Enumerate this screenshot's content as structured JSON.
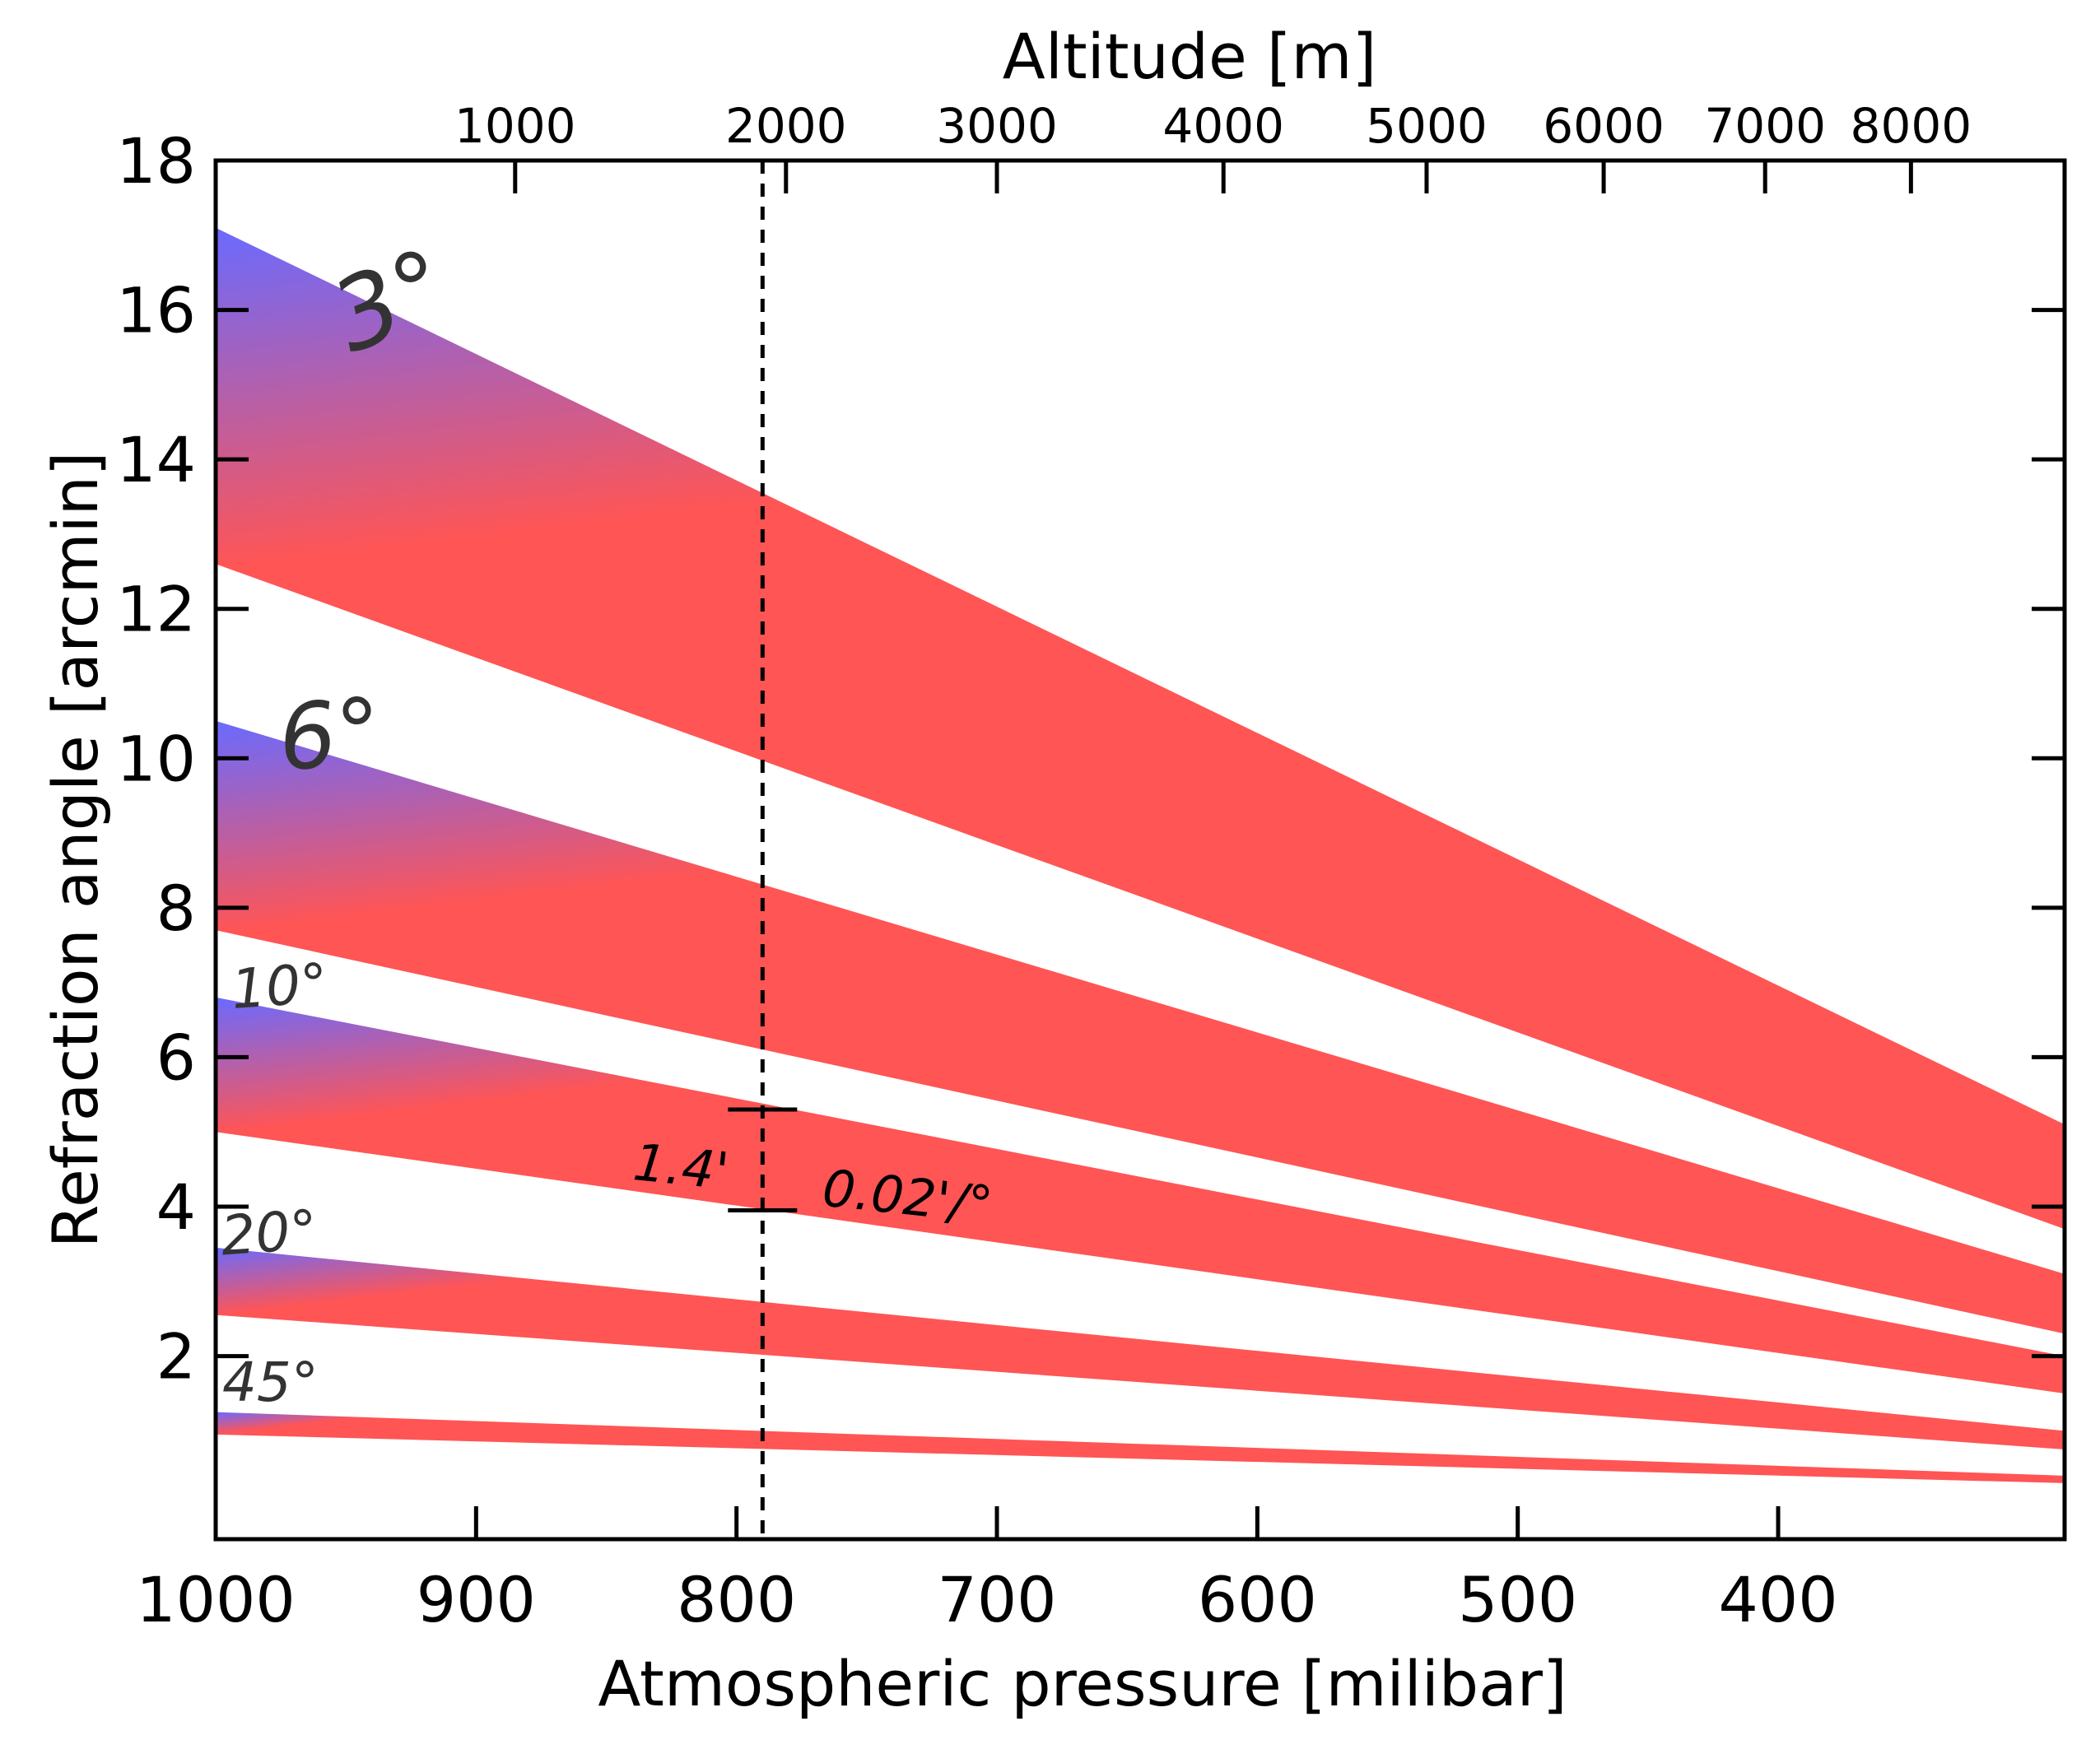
{
  "chart_data": {
    "type": "area",
    "xlabel": "Atmospheric pressure [milibar]",
    "ylabel": "Refraction angle [arcmin]",
    "top_xlabel": "Altitude [m]",
    "xlim": [
      1000,
      290
    ],
    "ylim": [
      -0.45,
      18
    ],
    "x_ticks": [
      1000,
      900,
      800,
      700,
      600,
      500,
      400
    ],
    "y_ticks": [
      2,
      4,
      6,
      8,
      10,
      12,
      14,
      16,
      18
    ],
    "top_ticks": [
      {
        "label": "1000",
        "pressure": 885
      },
      {
        "label": "2000",
        "pressure": 781
      },
      {
        "label": "3000",
        "pressure": 700
      },
      {
        "label": "4000",
        "pressure": 613
      },
      {
        "label": "5000",
        "pressure": 535
      },
      {
        "label": "6000",
        "pressure": 467
      },
      {
        "label": "7000",
        "pressure": 405
      },
      {
        "label": "8000",
        "pressure": 349
      }
    ],
    "colors": {
      "upper_edge": "#6a6aff",
      "lower_edge": "#ff5555"
    },
    "series": [
      {
        "name": "3°",
        "pressure": [
          1000,
          290
        ],
        "upper": [
          17.1,
          5.1
        ],
        "lower": [
          12.6,
          3.7
        ]
      },
      {
        "name": "6°",
        "pressure": [
          1000,
          290
        ],
        "upper": [
          10.5,
          3.1
        ],
        "lower": [
          7.7,
          2.3
        ]
      },
      {
        "name": "10°",
        "pressure": [
          1000,
          290
        ],
        "upper": [
          6.8,
          2.0
        ],
        "lower": [
          5.0,
          1.5
        ]
      },
      {
        "name": "20°",
        "pressure": [
          1000,
          290
        ],
        "upper": [
          3.45,
          1.0
        ],
        "lower": [
          2.55,
          0.75
        ]
      },
      {
        "name": "45°",
        "pressure": [
          1000,
          290
        ],
        "upper": [
          1.25,
          0.4
        ],
        "lower": [
          0.95,
          0.3
        ]
      }
    ],
    "band_labels": [
      {
        "text": "3°",
        "pressure": 928,
        "y": 15.7,
        "size": 120,
        "rotate": -22
      },
      {
        "text": "6°",
        "pressure": 955,
        "y": 9.9,
        "size": 110,
        "rotate": -5
      },
      {
        "text": "10°",
        "pressure": 975,
        "y": 6.7,
        "size": 66,
        "rotate": -4
      },
      {
        "text": "20°",
        "pressure": 979,
        "y": 3.4,
        "size": 66,
        "rotate": -4
      },
      {
        "text": "45°",
        "pressure": 979,
        "y": 1.4,
        "size": 66,
        "rotate": 0
      }
    ],
    "reference_line": {
      "pressure": 790,
      "style": "dashed"
    },
    "annotations": [
      {
        "text": "1.4'",
        "pressure": 822,
        "y": 4.3,
        "rotate": 6
      },
      {
        "text": "0.02'/°",
        "pressure": 735,
        "y": 3.9,
        "rotate": 6
      }
    ],
    "error_bar": {
      "pressure": 790,
      "y_top": 5.3,
      "y_bottom": 3.95
    }
  }
}
